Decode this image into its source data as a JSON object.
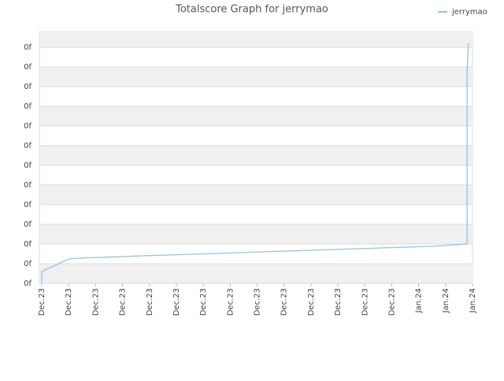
{
  "chart_data": {
    "type": "line",
    "title": "Totalscore Graph for jerrymao",
    "series": [
      {
        "name": "jerrymao",
        "color": "#8ec3ee",
        "x": [
          0,
          0,
          0.5,
          1.0,
          1.4,
          2.1,
          3.0,
          3.7,
          4.7,
          5.5,
          6.5,
          7.3,
          8.1,
          9.0,
          9.9,
          10.8,
          11.7,
          12.6,
          13.5,
          14.4,
          15.4,
          15.8,
          15.8,
          15.85
        ],
        "values": [
          0,
          0.6,
          0.92,
          1.24,
          1.28,
          1.32,
          1.36,
          1.4,
          1.44,
          1.48,
          1.52,
          1.56,
          1.6,
          1.64,
          1.68,
          1.72,
          1.76,
          1.8,
          1.84,
          1.88,
          1.96,
          2.0,
          10.8,
          12.2
        ]
      }
    ],
    "xlim": [
      0,
      16
    ],
    "ylim": [
      0,
      12.8
    ],
    "xticks": [
      {
        "value": 0,
        "label": "Dec.23"
      },
      {
        "value": 1,
        "label": "Dec.23"
      },
      {
        "value": 2,
        "label": "Dec.23"
      },
      {
        "value": 3,
        "label": "Dec.23"
      },
      {
        "value": 4,
        "label": "Dec.23"
      },
      {
        "value": 5,
        "label": "Dec.23"
      },
      {
        "value": 6,
        "label": "Dec.23"
      },
      {
        "value": 7,
        "label": "Dec.23"
      },
      {
        "value": 8,
        "label": "Dec.23"
      },
      {
        "value": 9,
        "label": "Dec.23"
      },
      {
        "value": 10,
        "label": "Dec.23"
      },
      {
        "value": 11,
        "label": "Dec.23"
      },
      {
        "value": 12,
        "label": "Dec.23"
      },
      {
        "value": 13,
        "label": "Dec.23"
      },
      {
        "value": 14,
        "label": "Jan.24"
      },
      {
        "value": 15,
        "label": "Jan.24"
      },
      {
        "value": 16,
        "label": "Jan.24"
      }
    ],
    "yticks": [
      {
        "value": 0,
        "label": "0f"
      },
      {
        "value": 1,
        "label": "0f"
      },
      {
        "value": 2,
        "label": "0f"
      },
      {
        "value": 3,
        "label": "0f"
      },
      {
        "value": 4,
        "label": "0f"
      },
      {
        "value": 5,
        "label": "0f"
      },
      {
        "value": 6,
        "label": "0f"
      },
      {
        "value": 7,
        "label": "0f"
      },
      {
        "value": 8,
        "label": "0f"
      },
      {
        "value": 9,
        "label": "0f"
      },
      {
        "value": 10,
        "label": "0f"
      },
      {
        "value": 11,
        "label": "0f"
      },
      {
        "value": 12,
        "label": "0f"
      }
    ],
    "grid": true,
    "legend": "top-right"
  }
}
